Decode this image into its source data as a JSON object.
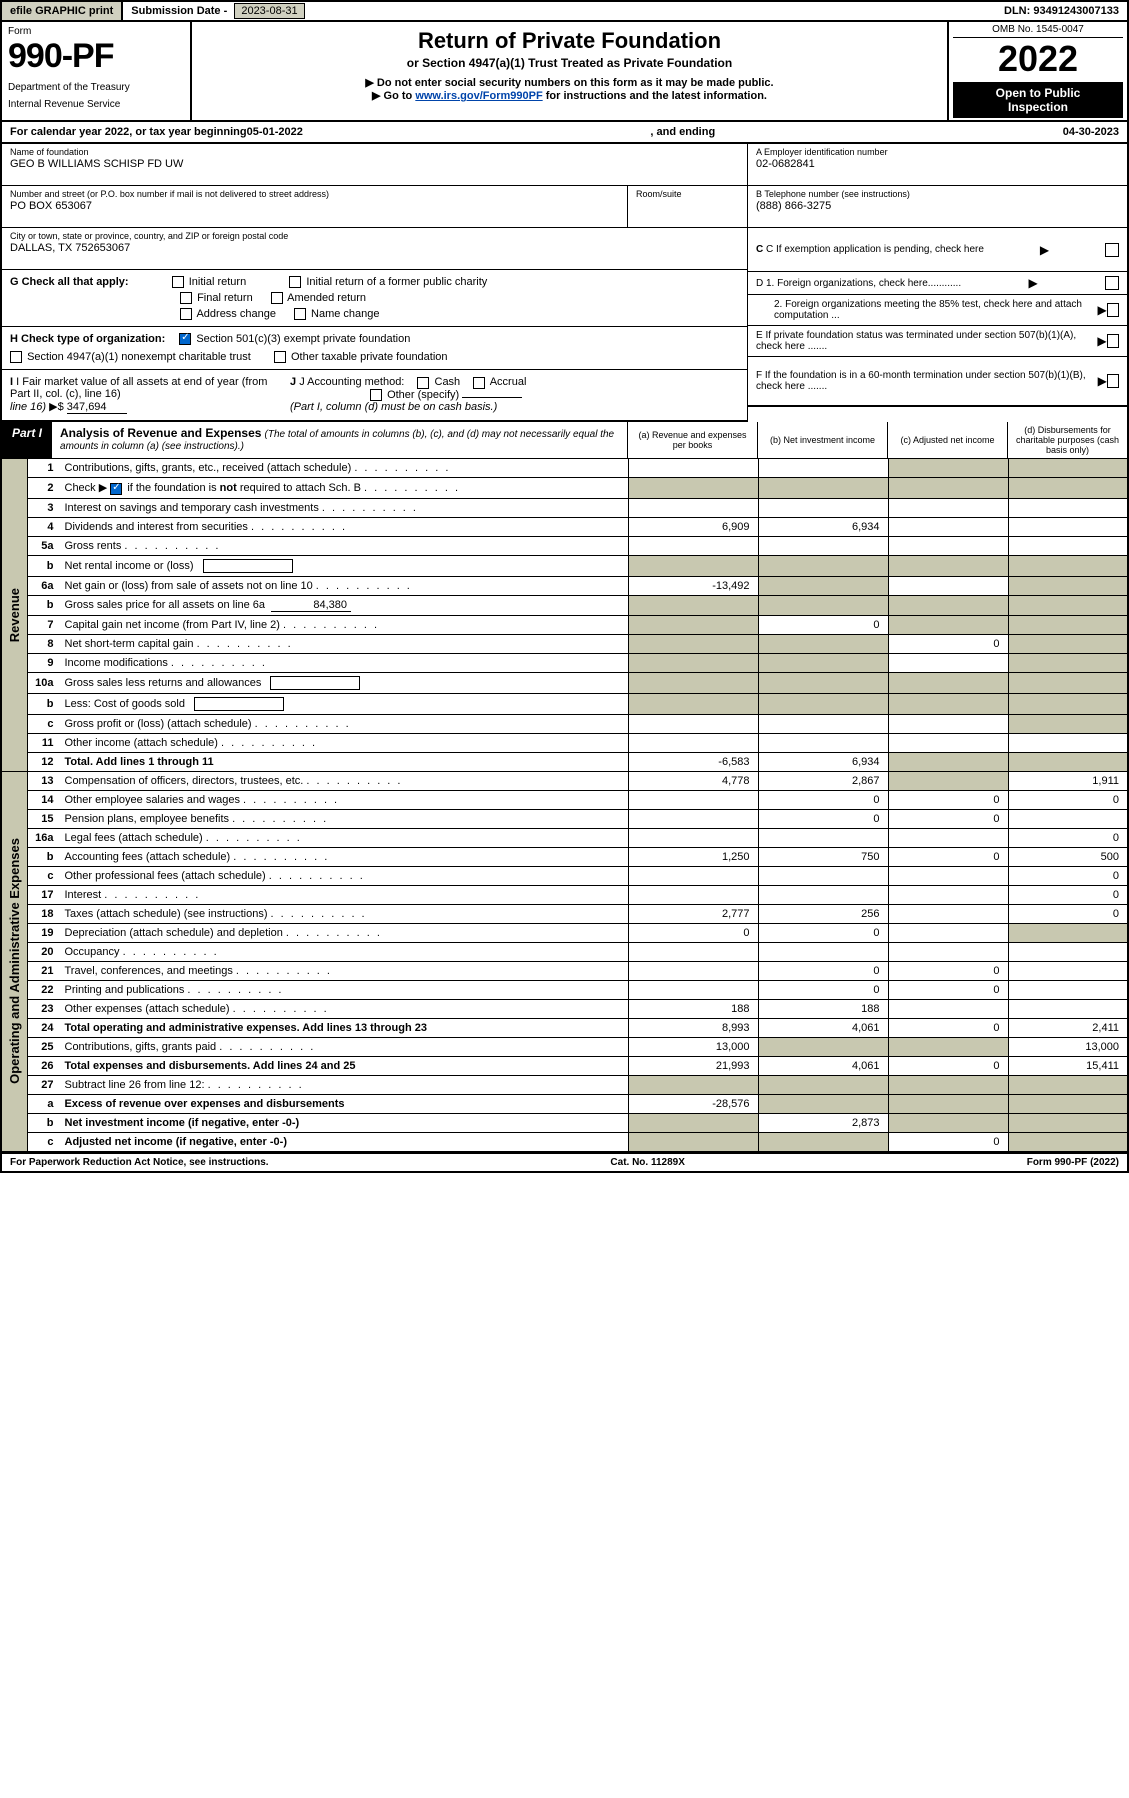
{
  "top": {
    "efile": "efile GRAPHIC print",
    "sub_date_lbl": "Submission Date - ",
    "sub_date": "2023-08-31",
    "dln_lbl": "DLN: ",
    "dln": "93491243007133"
  },
  "header": {
    "form_lbl": "Form",
    "form_num": "990-PF",
    "dept1": "Department of the Treasury",
    "dept2": "Internal Revenue Service",
    "title": "Return of Private Foundation",
    "sub1": "or Section 4947(a)(1) Trust Treated as Private Foundation",
    "sub2": "▶ Do not enter social security numbers on this form as it may be made public.",
    "sub3": "▶ Go to www.irs.gov/Form990PF for instructions and the latest information.",
    "link": "www.irs.gov/Form990PF",
    "omb": "OMB No. 1545-0047",
    "year": "2022",
    "open1": "Open to Public",
    "open2": "Inspection"
  },
  "calyear": {
    "prefix": "For calendar year 2022, or tax year beginning ",
    "begin": "05-01-2022",
    "mid": " , and ending ",
    "end": "04-30-2023"
  },
  "info": {
    "name_lbl": "Name of foundation",
    "name": "GEO B WILLIAMS SCHISP FD UW",
    "addr_lbl": "Number and street (or P.O. box number if mail is not delivered to street address)",
    "addr": "PO BOX 653067",
    "room_lbl": "Room/suite",
    "city_lbl": "City or town, state or province, country, and ZIP or foreign postal code",
    "city": "DALLAS, TX  752653067",
    "a_lbl": "A Employer identification number",
    "a_val": "02-0682841",
    "b_lbl": "B Telephone number (see instructions)",
    "b_val": "(888) 866-3275",
    "c_lbl": "C If exemption application is pending, check here",
    "d1_lbl": "D 1. Foreign organizations, check here............",
    "d2_lbl": "2. Foreign organizations meeting the 85% test, check here and attach computation ...",
    "e_lbl": "E  If private foundation status was terminated under section 507(b)(1)(A), check here .......",
    "f_lbl": "F  If the foundation is in a 60-month termination under section 507(b)(1)(B), check here .......",
    "g_lbl": "G Check all that apply:",
    "g_initial": "Initial return",
    "g_initial_former": "Initial return of a former public charity",
    "g_final": "Final return",
    "g_amended": "Amended return",
    "g_addr": "Address change",
    "g_name": "Name change",
    "h_lbl": "H Check type of organization:",
    "h_501c3": "Section 501(c)(3) exempt private foundation",
    "h_4947": "Section 4947(a)(1) nonexempt charitable trust",
    "h_other": "Other taxable private foundation",
    "i_lbl": "I Fair market value of all assets at end of year (from Part II, col. (c), line 16)",
    "i_arrow": "▶$",
    "i_val": "347,694",
    "j_lbl": "J Accounting method:",
    "j_cash": "Cash",
    "j_accrual": "Accrual",
    "j_other": "Other (specify)",
    "j_note": "(Part I, column (d) must be on cash basis.)"
  },
  "part1": {
    "num": "Part I",
    "title": "Analysis of Revenue and Expenses",
    "note": "(The total of amounts in columns (b), (c), and (d) may not necessarily equal the amounts in column (a) (see instructions).)",
    "col_a": "(a)  Revenue and expenses per books",
    "col_b": "(b)  Net investment income",
    "col_c": "(c)  Adjusted net income",
    "col_d": "(d)  Disbursements for charitable purposes (cash basis only)"
  },
  "side": {
    "rev": "Revenue",
    "exp": "Operating and Administrative Expenses"
  },
  "rows": {
    "r1": {
      "ln": "1",
      "desc": "Contributions, gifts, grants, etc., received (attach schedule)"
    },
    "r2": {
      "ln": "2",
      "desc": "Check ▶    if the foundation is not required to attach Sch. B",
      "check": true
    },
    "r3": {
      "ln": "3",
      "desc": "Interest on savings and temporary cash investments"
    },
    "r4": {
      "ln": "4",
      "desc": "Dividends and interest from securities",
      "a": "6,909",
      "b": "6,934"
    },
    "r5a": {
      "ln": "5a",
      "desc": "Gross rents"
    },
    "r5b": {
      "ln": "b",
      "desc": "Net rental income or (loss)",
      "box": true
    },
    "r6a": {
      "ln": "6a",
      "desc": "Net gain or (loss) from sale of assets not on line 10",
      "a": "-13,492"
    },
    "r6b": {
      "ln": "b",
      "desc": "Gross sales price for all assets on line 6a",
      "inline": "84,380"
    },
    "r7": {
      "ln": "7",
      "desc": "Capital gain net income (from Part IV, line 2)",
      "b": "0"
    },
    "r8": {
      "ln": "8",
      "desc": "Net short-term capital gain",
      "c": "0"
    },
    "r9": {
      "ln": "9",
      "desc": "Income modifications"
    },
    "r10a": {
      "ln": "10a",
      "desc": "Gross sales less returns and allowances",
      "box": true
    },
    "r10b": {
      "ln": "b",
      "desc": "Less: Cost of goods sold",
      "box": true
    },
    "r10c": {
      "ln": "c",
      "desc": "Gross profit or (loss) (attach schedule)"
    },
    "r11": {
      "ln": "11",
      "desc": "Other income (attach schedule)"
    },
    "r12": {
      "ln": "12",
      "desc": "Total. Add lines 1 through 11",
      "a": "-6,583",
      "b": "6,934",
      "bold": true
    },
    "r13": {
      "ln": "13",
      "desc": "Compensation of officers, directors, trustees, etc.",
      "a": "4,778",
      "b": "2,867",
      "d": "1,911"
    },
    "r14": {
      "ln": "14",
      "desc": "Other employee salaries and wages",
      "b": "0",
      "c": "0",
      "d": "0"
    },
    "r15": {
      "ln": "15",
      "desc": "Pension plans, employee benefits",
      "b": "0",
      "c": "0"
    },
    "r16a": {
      "ln": "16a",
      "desc": "Legal fees (attach schedule)",
      "d": "0"
    },
    "r16b": {
      "ln": "b",
      "desc": "Accounting fees (attach schedule)",
      "a": "1,250",
      "b": "750",
      "c": "0",
      "d": "500"
    },
    "r16c": {
      "ln": "c",
      "desc": "Other professional fees (attach schedule)",
      "d": "0"
    },
    "r17": {
      "ln": "17",
      "desc": "Interest",
      "d": "0"
    },
    "r18": {
      "ln": "18",
      "desc": "Taxes (attach schedule) (see instructions)",
      "a": "2,777",
      "b": "256",
      "d": "0"
    },
    "r19": {
      "ln": "19",
      "desc": "Depreciation (attach schedule) and depletion",
      "a": "0",
      "b": "0"
    },
    "r20": {
      "ln": "20",
      "desc": "Occupancy"
    },
    "r21": {
      "ln": "21",
      "desc": "Travel, conferences, and meetings",
      "b": "0",
      "c": "0"
    },
    "r22": {
      "ln": "22",
      "desc": "Printing and publications",
      "b": "0",
      "c": "0"
    },
    "r23": {
      "ln": "23",
      "desc": "Other expenses (attach schedule)",
      "a": "188",
      "b": "188"
    },
    "r24": {
      "ln": "24",
      "desc": "Total operating and administrative expenses. Add lines 13 through 23",
      "a": "8,993",
      "b": "4,061",
      "c": "0",
      "d": "2,411",
      "bold": true
    },
    "r25": {
      "ln": "25",
      "desc": "Contributions, gifts, grants paid",
      "a": "13,000",
      "d": "13,000"
    },
    "r26": {
      "ln": "26",
      "desc": "Total expenses and disbursements. Add lines 24 and 25",
      "a": "21,993",
      "b": "4,061",
      "c": "0",
      "d": "15,411",
      "bold": true
    },
    "r27": {
      "ln": "27",
      "desc": "Subtract line 26 from line 12:"
    },
    "r27a": {
      "ln": "a",
      "desc": "Excess of revenue over expenses and disbursements",
      "a": "-28,576",
      "bold": true
    },
    "r27b": {
      "ln": "b",
      "desc": "Net investment income (if negative, enter -0-)",
      "b": "2,873",
      "bold": true
    },
    "r27c": {
      "ln": "c",
      "desc": "Adjusted net income (if negative, enter -0-)",
      "c": "0",
      "bold": true
    }
  },
  "footer": {
    "left": "For Paperwork Reduction Act Notice, see instructions.",
    "mid": "Cat. No. 11289X",
    "right": "Form 990-PF (2022)"
  },
  "colors": {
    "shade": "#c8c8b0",
    "link": "#0044aa",
    "check_on": "#0066cc"
  }
}
